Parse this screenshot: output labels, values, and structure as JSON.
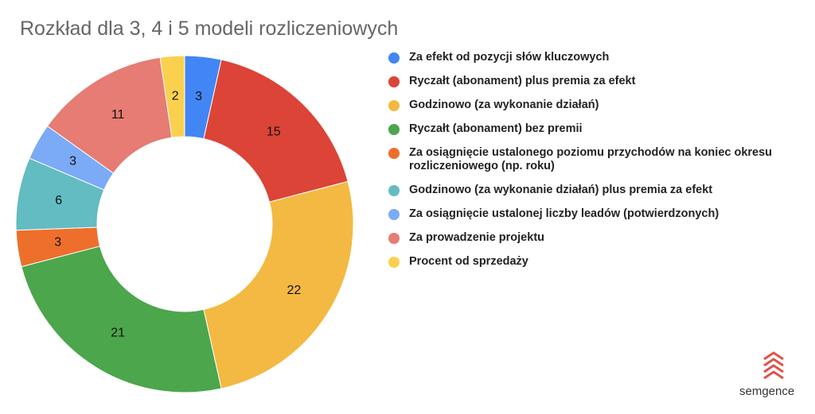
{
  "chart_data": {
    "type": "donut",
    "title": "Rozkład dla 3, 4 i 5 modeli rozliczeniowych",
    "categories": [
      "Za efekt od pozycji słów kluczowych",
      "Ryczałt (abonament) plus premia za efekt",
      "Godzinowo (za wykonanie działań)",
      "Ryczałt (abonament) bez premii",
      "Za osiągnięcie ustalonego poziomu przychodów na koniec okresu rozliczeniowego (np. roku)",
      "Godzinowo (za wykonanie działań) plus premia za efekt",
      "Za osiągnięcie ustalonej liczby leadów (potwierdzonych)",
      "Za prowadzenie projektu",
      "Procent od sprzedaży"
    ],
    "values": [
      3,
      15,
      22,
      21,
      3,
      6,
      3,
      11,
      2
    ],
    "colors": [
      "#4285f4",
      "#db4437",
      "#f4b942",
      "#4ca64c",
      "#ee6f2b",
      "#62bcc1",
      "#7baaf7",
      "#e67c73",
      "#fcd04f"
    ]
  },
  "logo": "semgence"
}
